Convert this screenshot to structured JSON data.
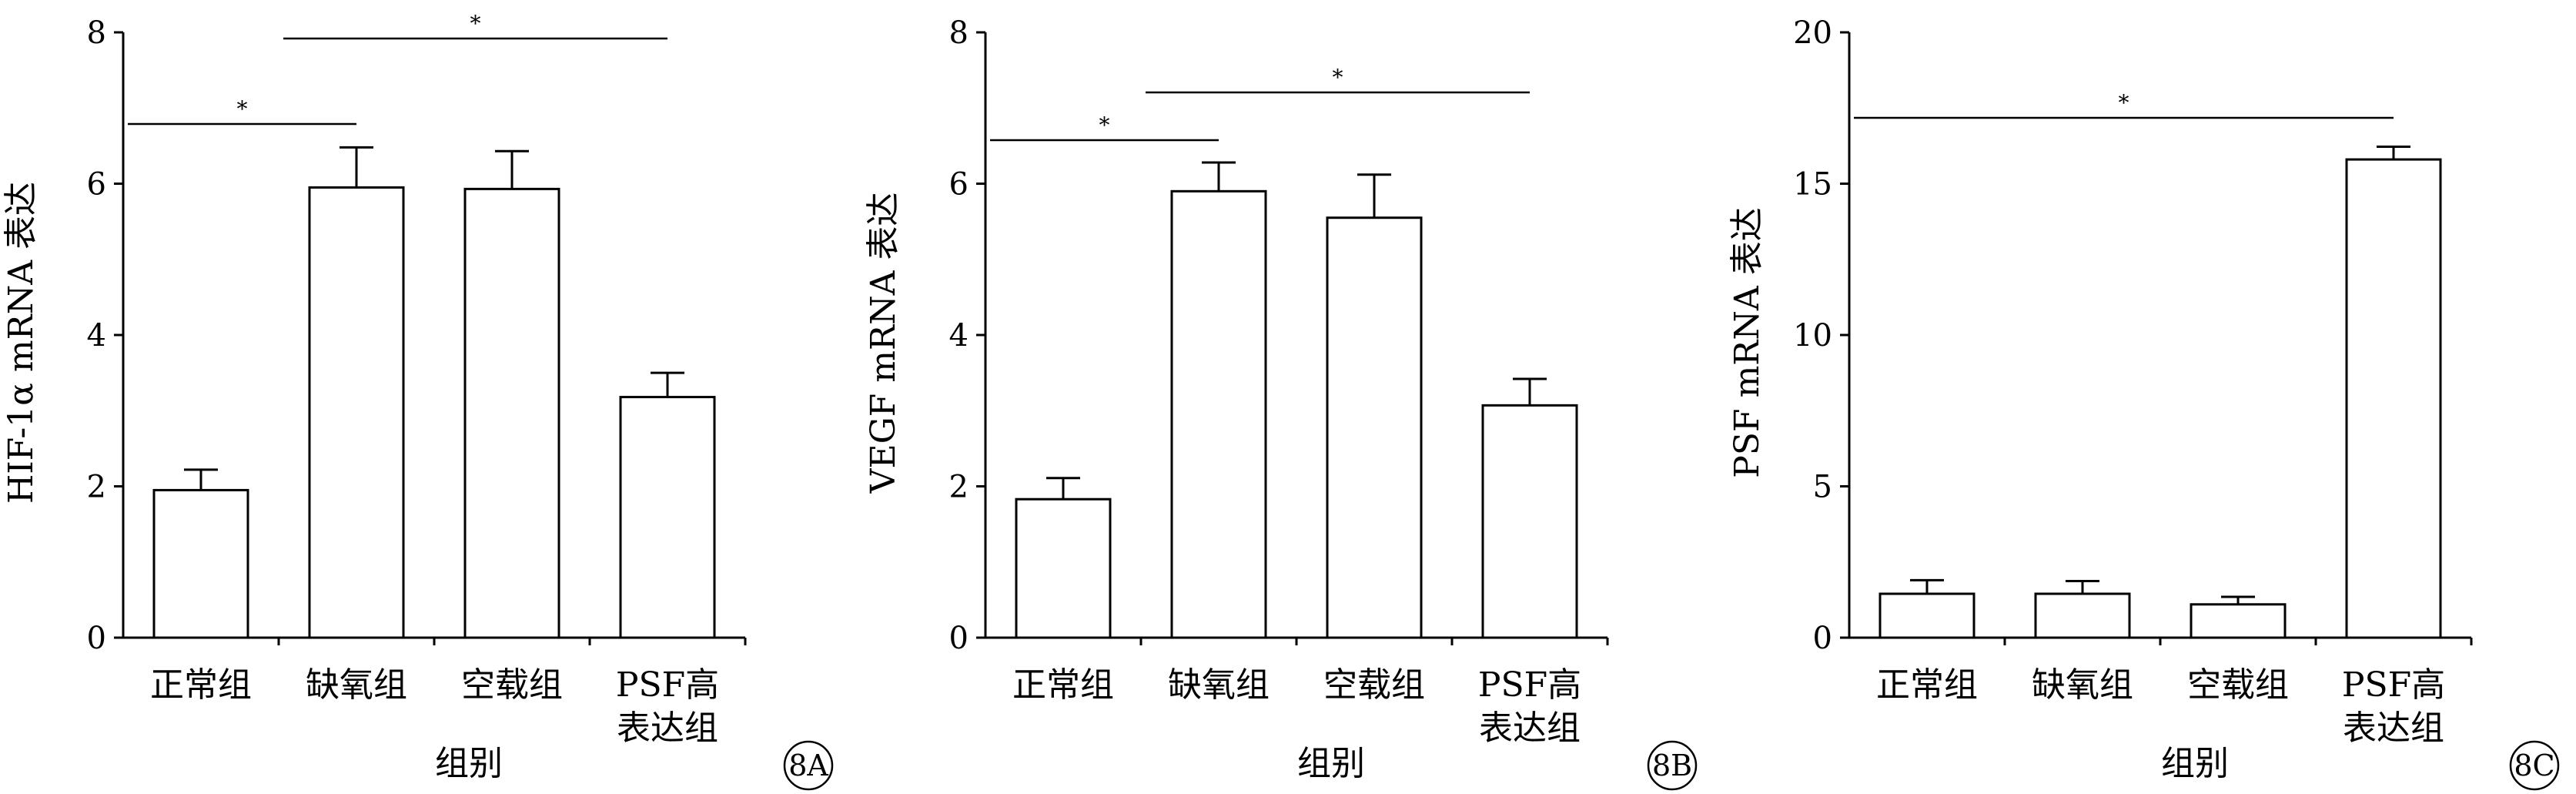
{
  "chart_data": [
    {
      "type": "bar",
      "panel_label": "8A",
      "categories": [
        [
          "正常组"
        ],
        [
          "缺氧组"
        ],
        [
          "空载组"
        ],
        [
          "PSF高",
          "表达组"
        ]
      ],
      "values": [
        1.95,
        5.95,
        5.93,
        3.18
      ],
      "errors": [
        0.27,
        0.53,
        0.5,
        0.32
      ],
      "xlabel": "组别",
      "ylabel": "HIF-1α mRNA 表达",
      "ylim": [
        0,
        8
      ],
      "yticks": [
        "0",
        "2",
        "4",
        "6",
        "8"
      ],
      "significance": [
        {
          "from": 0,
          "to": 1,
          "label": "*"
        },
        {
          "from": 1,
          "to": 3,
          "label": "*"
        }
      ],
      "grid": false
    },
    {
      "type": "bar",
      "panel_label": "8B",
      "categories": [
        [
          "正常组"
        ],
        [
          "缺氧组"
        ],
        [
          "空载组"
        ],
        [
          "PSF高",
          "表达组"
        ]
      ],
      "values": [
        1.83,
        5.9,
        5.55,
        3.07
      ],
      "errors": [
        0.28,
        0.38,
        0.57,
        0.35
      ],
      "xlabel": "组别",
      "ylabel": "VEGF mRNA 表达",
      "ylim": [
        0,
        8
      ],
      "yticks": [
        "0",
        "2",
        "4",
        "6",
        "8"
      ],
      "significance": [
        {
          "from": 0,
          "to": 1,
          "label": "*"
        },
        {
          "from": 1,
          "to": 3,
          "label": "*"
        }
      ],
      "grid": false
    },
    {
      "type": "bar",
      "panel_label": "8C",
      "categories": [
        [
          "正常组"
        ],
        [
          "缺氧组"
        ],
        [
          "空载组"
        ],
        [
          "PSF高",
          "表达组"
        ]
      ],
      "values": [
        1.45,
        1.45,
        1.1,
        15.8
      ],
      "errors": [
        0.45,
        0.42,
        0.25,
        0.42
      ],
      "xlabel": "组别",
      "ylabel": "PSF mRNA 表达",
      "ylim": [
        0,
        20
      ],
      "yticks": [
        "0",
        "5",
        "10",
        "15",
        "20"
      ],
      "significance": [
        {
          "from": 0,
          "to": 3,
          "label": "*"
        }
      ],
      "grid": false
    }
  ]
}
